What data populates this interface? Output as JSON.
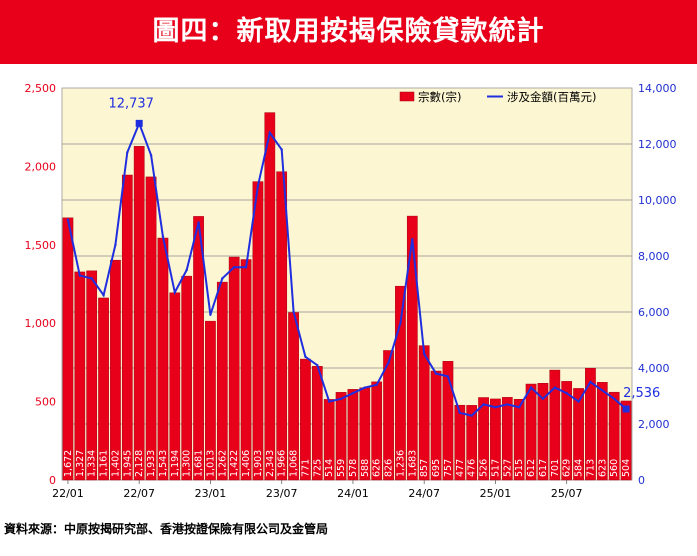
{
  "title": "圖四：新取用按揭保險貸款統計",
  "source": "資料來源：中原按揭研究部、香港按證保險有限公司及金管局",
  "colors": {
    "banner": "#e8001a",
    "bar": "#e8001a",
    "bar_stroke": "#a80012",
    "line": "#1f2fe0",
    "plot_bg": "#fdf6d2",
    "left_axis": "#e8001a",
    "right_axis": "#2030d0",
    "grid": "#8a8a8a"
  },
  "chart_data": {
    "type": "bar",
    "series": [
      {
        "name": "宗數(宗)",
        "axis": "left",
        "type": "bar",
        "values": [
          1672,
          1327,
          1334,
          1161,
          1402,
          1945,
          2128,
          1933,
          1543,
          1194,
          1300,
          1681,
          1013,
          1262,
          1422,
          1406,
          1903,
          2343,
          1966,
          1068,
          771,
          725,
          514,
          559,
          578,
          588,
          626,
          826,
          1236,
          1683,
          857,
          695,
          757,
          477,
          476,
          526,
          517,
          527,
          515,
          612,
          617,
          701,
          629,
          584,
          713,
          623,
          560,
          504
        ]
      },
      {
        "name": "涉及金額(百萬元)",
        "axis": "right",
        "type": "line",
        "values": [
          9300,
          7300,
          7200,
          6600,
          8400,
          11700,
          12737,
          11600,
          8700,
          6700,
          7500,
          9200,
          5900,
          7200,
          7600,
          7600,
          10500,
          12400,
          11800,
          6000,
          4400,
          4100,
          2800,
          2900,
          3100,
          3300,
          3400,
          4200,
          5600,
          8600,
          4500,
          3800,
          3700,
          2400,
          2300,
          2700,
          2600,
          2700,
          2600,
          3300,
          2900,
          3300,
          3100,
          2800,
          3500,
          3200,
          2900,
          2536
        ]
      }
    ],
    "xtick_labels": [
      "22/01",
      "22/07",
      "23/01",
      "23/07",
      "24/01",
      "24/07",
      "25/01",
      "25/07"
    ],
    "xtick_index": [
      0,
      6,
      12,
      18,
      24,
      30,
      36,
      42
    ],
    "y_left": {
      "min": 0,
      "max": 2500,
      "step": 500,
      "ticks": [
        "0",
        "500",
        "1,000",
        "1,500",
        "2,000",
        "2,500"
      ]
    },
    "y_right": {
      "min": 0,
      "max": 14000,
      "step": 2000,
      "ticks": [
        "0",
        "2,000",
        "4,000",
        "6,000",
        "8,000",
        "10,000",
        "12,000",
        "14,000"
      ]
    },
    "annotations": [
      {
        "text": "12,737",
        "series": 1,
        "index": 6
      },
      {
        "text": "2,536",
        "series": 1,
        "index": 47
      }
    ],
    "legend": [
      "宗數(宗)",
      "涉及金額(百萬元)"
    ],
    "legend_position": "top-right"
  }
}
